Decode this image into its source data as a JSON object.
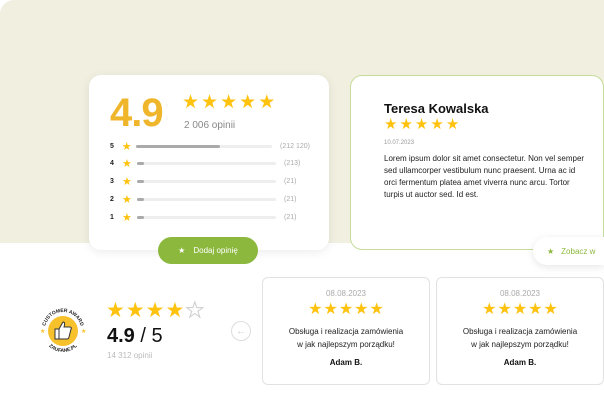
{
  "colors": {
    "accent": "#8cb83e",
    "star": "#ffc20e",
    "score": "#efb52b",
    "background": "#f1efe0"
  },
  "summary": {
    "score": "4.9",
    "stars": 5,
    "count": "2 006 opinii",
    "rows": [
      {
        "n": "5",
        "count": "(212 120)",
        "fill": 0.62
      },
      {
        "n": "4",
        "count": "(213)",
        "fill": 0.05
      },
      {
        "n": "3",
        "count": "(21)",
        "fill": 0.05
      },
      {
        "n": "2",
        "count": "(21)",
        "fill": 0.05
      },
      {
        "n": "1",
        "count": "(21)",
        "fill": 0.05
      }
    ],
    "add_button": "Dodaj opinię"
  },
  "featured": {
    "name": "Teresa Kowalska",
    "stars": 5,
    "date": "10.07.2023",
    "text": "Lorem ipsum dolor sit amet consectetur. Non vel semper sed ullamcorper vestibulum nunc praesent. Urna ac id orci fermentum platea amet viverra nunc arcu. Tortor turpis ut auctor sed. Id est.",
    "see_button": "Zobacz w"
  },
  "badge": {
    "top": "CUSTOMER AWARD",
    "bottom": "ZAUFANE.PL"
  },
  "overall": {
    "score": "4.9",
    "out_of": "/ 5",
    "stars": 4,
    "count": "14 312 opinii"
  },
  "reviews": [
    {
      "date": "08.08.2023",
      "stars": 5,
      "line1": "Obsługa i realizacja zamówienia",
      "line2": "w jak najlepszym porządku!",
      "author": "Adam B."
    },
    {
      "date": "08.08.2023",
      "stars": 5,
      "line1": "Obsługa i realizacja zamówienia",
      "line2": "w jak najlepszym porządku!",
      "author": "Adam B."
    }
  ]
}
